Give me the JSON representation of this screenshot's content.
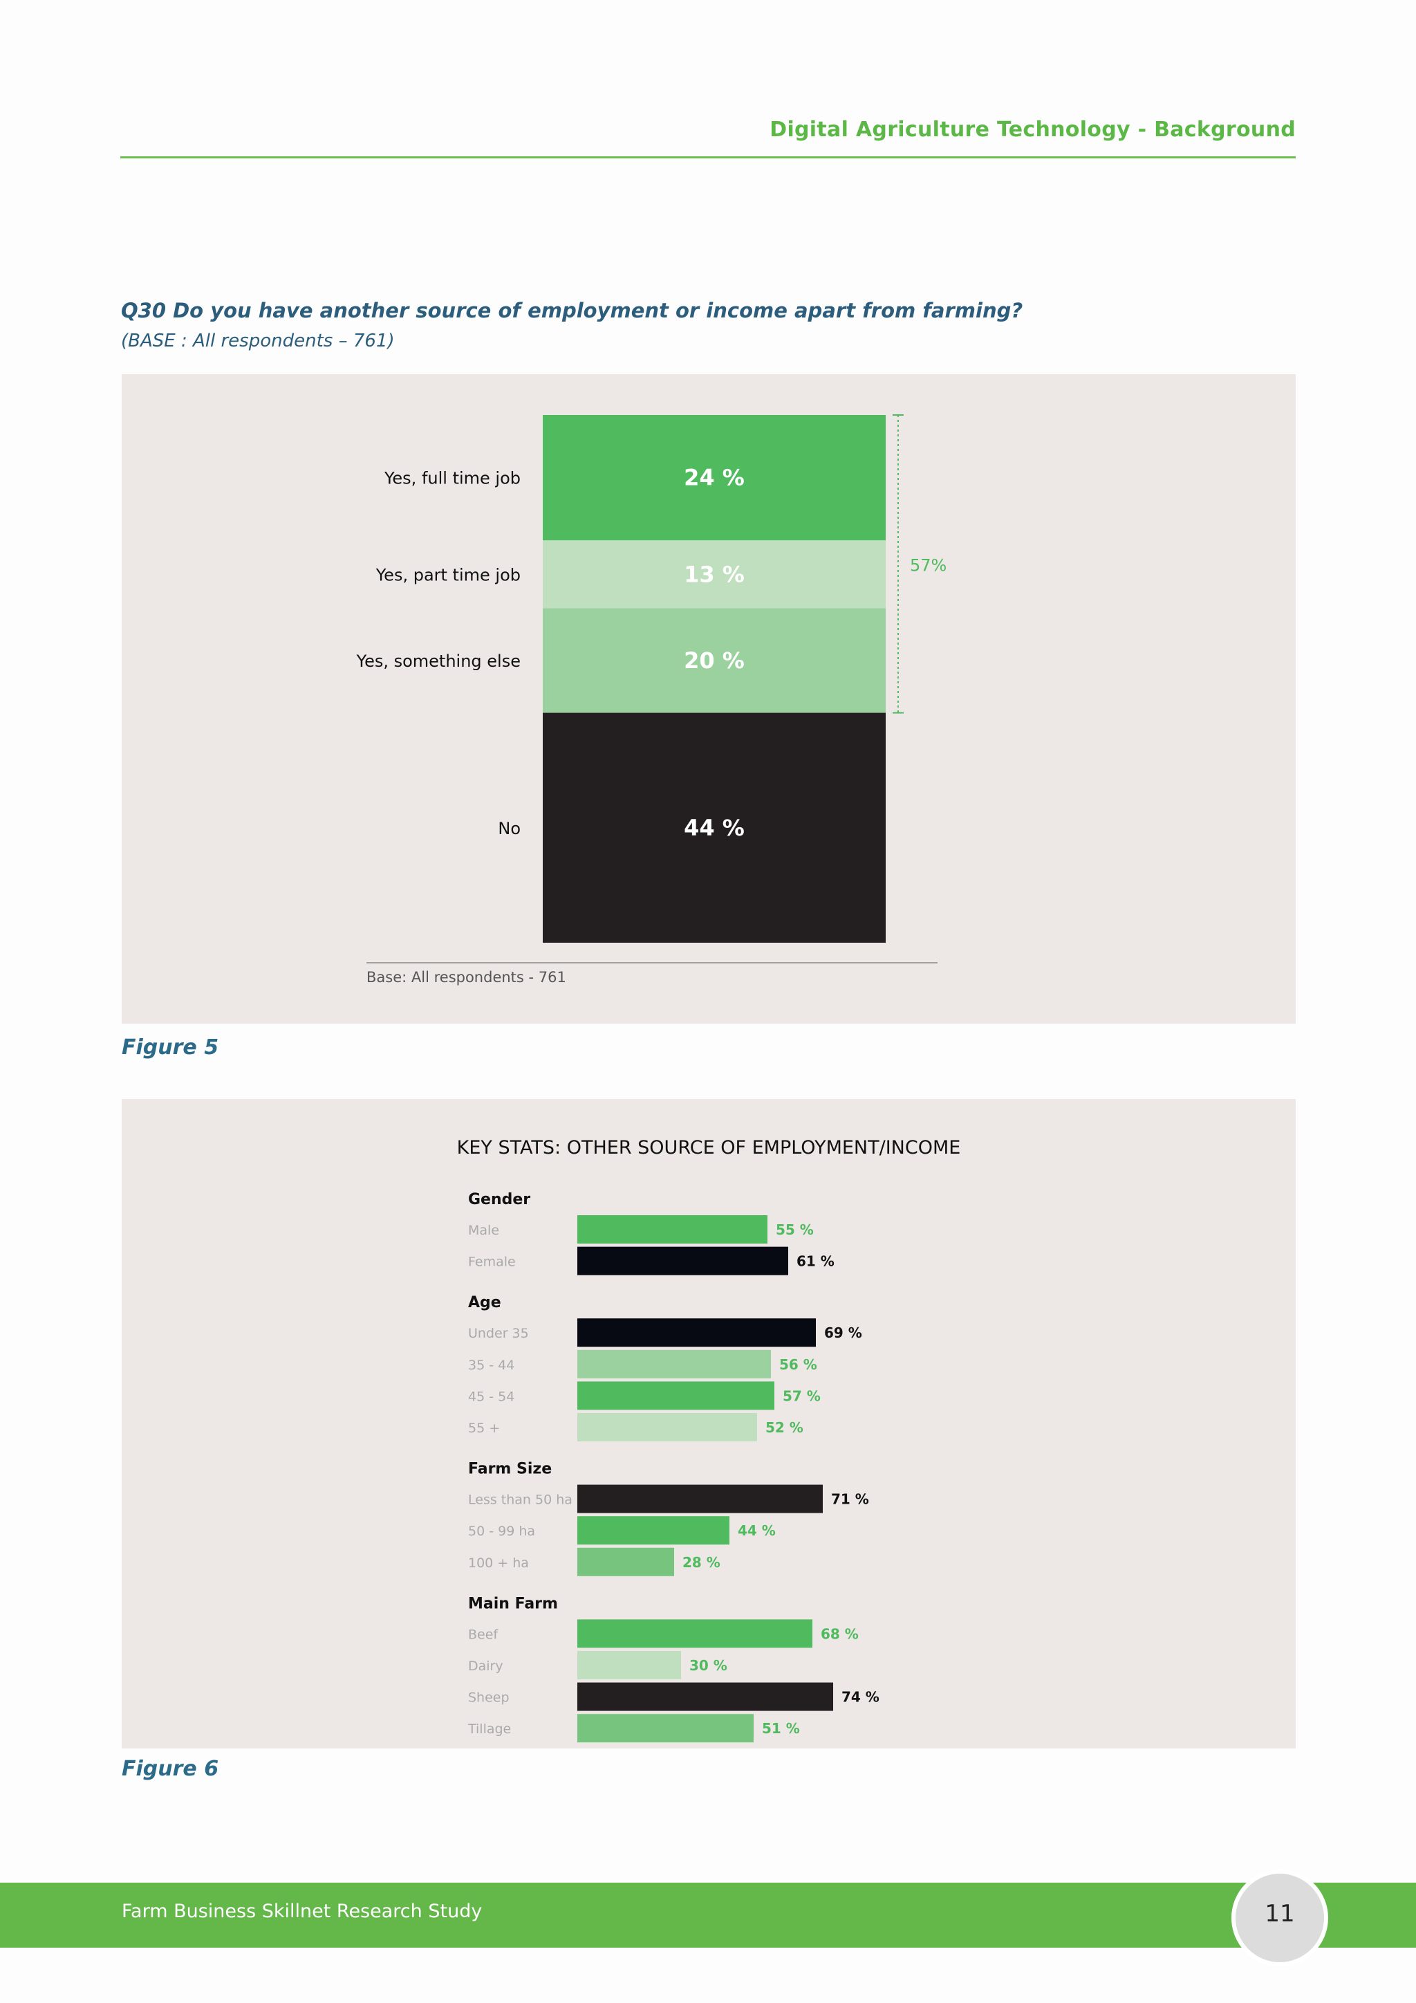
{
  "header": {
    "section_title": "Digital Agriculture Technology - Background"
  },
  "question": {
    "title": "Q30 Do you have another source of employment or income apart from farming?",
    "base": "(BASE : All respondents – 761)"
  },
  "figures": {
    "fig5_caption": "Figure 5",
    "fig6_caption": "Figure 6"
  },
  "colors": {
    "green": "#4fba5e",
    "light_green": "#bfdfbe",
    "mid_green": "#9bd19e",
    "soft_green": "#77c47e",
    "dark": "#231f20",
    "navy_black": "#070a12",
    "accent_text": "#5cb846"
  },
  "chart_data": [
    {
      "type": "bar",
      "stacked": true,
      "orientation": "vertical-stack",
      "categories": [
        "Yes, full time job",
        "Yes, part time job",
        "Yes, something else",
        "No"
      ],
      "values": [
        24,
        13,
        20,
        44
      ],
      "value_labels": [
        "24 %",
        "13 %",
        "20 %",
        "44 %"
      ],
      "colors": [
        "#4fba5e",
        "#bfdfbe",
        "#9bd19e",
        "#231f20"
      ],
      "bracket": {
        "label": "57%",
        "covers": [
          "Yes, full time job",
          "Yes, part time job",
          "Yes, something else"
        ]
      },
      "note": "Base: All respondents - 761"
    },
    {
      "type": "bar",
      "orientation": "horizontal",
      "title": "KEY STATS: OTHER SOURCE OF EMPLOYMENT/INCOME",
      "xlim": [
        0,
        100
      ],
      "groups": [
        {
          "name": "Gender",
          "items": [
            {
              "label": "Male",
              "value": 55,
              "value_label": "55 %",
              "color": "#4fba5e",
              "label_color": "#4fba5e"
            },
            {
              "label": "Female",
              "value": 61,
              "value_label": "61 %",
              "color": "#070a12",
              "label_color": "#111111"
            }
          ]
        },
        {
          "name": "Age",
          "items": [
            {
              "label": "Under 35",
              "value": 69,
              "value_label": "69 %",
              "color": "#070a12",
              "label_color": "#111111"
            },
            {
              "label": "35 - 44",
              "value": 56,
              "value_label": "56 %",
              "color": "#9bd19e",
              "label_color": "#4fba5e"
            },
            {
              "label": "45 - 54",
              "value": 57,
              "value_label": "57 %",
              "color": "#4fba5e",
              "label_color": "#4fba5e"
            },
            {
              "label": "55 +",
              "value": 52,
              "value_label": "52 %",
              "color": "#bfdfbe",
              "label_color": "#4fba5e"
            }
          ]
        },
        {
          "name": "Farm Size",
          "items": [
            {
              "label": "Less than 50 ha",
              "value": 71,
              "value_label": "71 %",
              "color": "#231f20",
              "label_color": "#111111"
            },
            {
              "label": "50 - 99 ha",
              "value": 44,
              "value_label": "44 %",
              "color": "#4fba5e",
              "label_color": "#4fba5e"
            },
            {
              "label": "100 + ha",
              "value": 28,
              "value_label": "28 %",
              "color": "#77c47e",
              "label_color": "#4fba5e"
            }
          ]
        },
        {
          "name": "Main Farm",
          "items": [
            {
              "label": "Beef",
              "value": 68,
              "value_label": "68 %",
              "color": "#4fba5e",
              "label_color": "#4fba5e"
            },
            {
              "label": "Dairy",
              "value": 30,
              "value_label": "30 %",
              "color": "#bfdfbe",
              "label_color": "#4fba5e"
            },
            {
              "label": "Sheep",
              "value": 74,
              "value_label": "74 %",
              "color": "#231f20",
              "label_color": "#111111"
            },
            {
              "label": "Tillage",
              "value": 51,
              "value_label": "51 %",
              "color": "#77c47e",
              "label_color": "#4fba5e"
            }
          ]
        }
      ]
    }
  ],
  "footer": {
    "study_name": "Farm Business Skillnet Research Study",
    "page_number": "11"
  }
}
